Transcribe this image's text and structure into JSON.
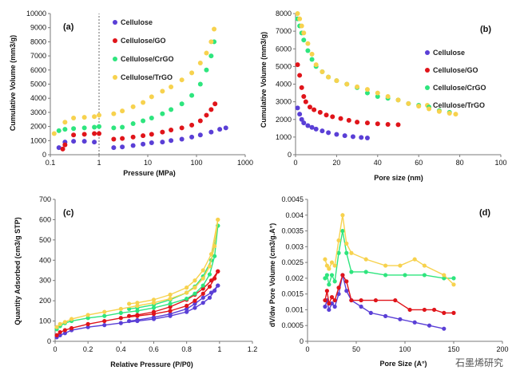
{
  "colors": {
    "Cellulose": "#5a3fd6",
    "Cellulose/GO": "#e0141a",
    "Cellulose/CrGO": "#2ee57e",
    "Cellulose/TrGO": "#f7d24e"
  },
  "watermark": "石墨烯研究",
  "chart_data": [
    {
      "id": "a",
      "panel_label": "(a)",
      "type": "scatter",
      "xscale": "log",
      "xlabel": "Pressure (MPa)",
      "ylabel": "Cumulative Volume (mm3/g)",
      "xlim": [
        0.1,
        1000
      ],
      "ylim": [
        0,
        10000
      ],
      "xticks": [
        0.1,
        1,
        10,
        100,
        1000
      ],
      "xtick_labels": [
        "0.1",
        "1",
        "10",
        "100",
        "1000"
      ],
      "yticks": [
        0,
        1000,
        2000,
        3000,
        4000,
        5000,
        6000,
        7000,
        8000,
        9000,
        10000
      ],
      "ytick_labels": [
        "0",
        "1000",
        "2000",
        "3000",
        "4000",
        "5000",
        "6000",
        "7000",
        "8000",
        "9000",
        "10000"
      ],
      "vline_x": 1,
      "legend": "top-left",
      "series": [
        {
          "name": "Cellulose",
          "x": [
            0.15,
            0.2,
            0.3,
            0.5,
            0.8,
            2,
            3,
            5,
            8,
            12,
            20,
            30,
            50,
            80,
            120,
            200,
            300,
            400
          ],
          "y": [
            500,
            900,
            950,
            950,
            900,
            500,
            550,
            650,
            750,
            850,
            900,
            1000,
            1100,
            1250,
            1400,
            1600,
            1800,
            1900
          ]
        },
        {
          "name": "Cellulose/GO",
          "x": [
            0.18,
            0.2,
            0.3,
            0.5,
            0.8,
            1,
            2,
            3,
            5,
            8,
            12,
            20,
            30,
            50,
            80,
            120,
            160,
            200,
            240
          ],
          "y": [
            400,
            700,
            1400,
            1450,
            1500,
            1500,
            1100,
            1150,
            1250,
            1350,
            1450,
            1600,
            1750,
            1900,
            2100,
            2400,
            2800,
            3200,
            3600
          ]
        },
        {
          "name": "Cellulose/CrGO",
          "x": [
            0.15,
            0.2,
            0.3,
            0.5,
            0.8,
            1,
            2,
            3,
            5,
            8,
            12,
            20,
            30,
            50,
            80,
            120,
            160,
            200,
            230
          ],
          "y": [
            1700,
            1800,
            1850,
            1900,
            1950,
            2000,
            1900,
            1950,
            2200,
            2400,
            2600,
            2900,
            3200,
            3600,
            4200,
            5000,
            6000,
            7000,
            8000
          ]
        },
        {
          "name": "Cellulose/TrGO",
          "x": [
            0.12,
            0.2,
            0.3,
            0.5,
            0.8,
            1,
            2,
            3,
            5,
            8,
            12,
            20,
            30,
            50,
            80,
            120,
            160,
            200,
            230
          ],
          "y": [
            1500,
            2300,
            2600,
            2650,
            2700,
            2800,
            2900,
            3100,
            3400,
            3700,
            4100,
            4500,
            4800,
            5300,
            5800,
            6500,
            7200,
            8000,
            8900
          ]
        }
      ]
    },
    {
      "id": "b",
      "panel_label": "(b)",
      "type": "scatter",
      "xlabel": "Pore size (nm)",
      "ylabel": "Cumulative Volume (mm3/g)",
      "xlim": [
        0,
        100
      ],
      "ylim": [
        0,
        8000
      ],
      "xticks": [
        0,
        20,
        40,
        60,
        80,
        100
      ],
      "xtick_labels": [
        "0",
        "20",
        "40",
        "60",
        "80",
        "100"
      ],
      "yticks": [
        0,
        1000,
        2000,
        3000,
        4000,
        5000,
        6000,
        7000,
        8000
      ],
      "ytick_labels": [
        "0",
        "1000",
        "2000",
        "3000",
        "4000",
        "5000",
        "6000",
        "7000",
        "8000"
      ],
      "legend": "right",
      "series": [
        {
          "name": "Cellulose",
          "x": [
            1,
            2,
            3,
            4,
            6,
            8,
            10,
            13,
            16,
            20,
            24,
            28,
            32,
            35
          ],
          "y": [
            2650,
            2300,
            2000,
            1800,
            1650,
            1550,
            1450,
            1350,
            1250,
            1150,
            1080,
            1020,
            980,
            950
          ]
        },
        {
          "name": "Cellulose/GO",
          "x": [
            1,
            2,
            3,
            4,
            5,
            7,
            9,
            12,
            15,
            18,
            22,
            26,
            30,
            35,
            40,
            45,
            50
          ],
          "y": [
            5100,
            4500,
            3800,
            3300,
            3000,
            2700,
            2550,
            2400,
            2250,
            2150,
            2050,
            1950,
            1850,
            1800,
            1750,
            1720,
            1700
          ]
        },
        {
          "name": "Cellulose/CrGO",
          "x": [
            1,
            2,
            3,
            4,
            6,
            8,
            10,
            13,
            16,
            20,
            25,
            30,
            35,
            40,
            45,
            50,
            55,
            60,
            65,
            70,
            75
          ],
          "y": [
            7700,
            7300,
            6900,
            6500,
            5900,
            5400,
            5000,
            4700,
            4400,
            4200,
            4000,
            3800,
            3500,
            3300,
            3200,
            3100,
            2900,
            2800,
            2700,
            2500,
            2400
          ]
        },
        {
          "name": "Cellulose/TrGO",
          "x": [
            1,
            2,
            3,
            4,
            6,
            8,
            10,
            13,
            16,
            20,
            25,
            30,
            35,
            40,
            45,
            50,
            55,
            60,
            65,
            70,
            75,
            78
          ],
          "y": [
            8000,
            7700,
            7300,
            6900,
            6300,
            5700,
            5100,
            4700,
            4400,
            4200,
            4000,
            3850,
            3700,
            3500,
            3300,
            3100,
            2900,
            2750,
            2600,
            2450,
            2350,
            2300
          ]
        }
      ]
    },
    {
      "id": "c",
      "panel_label": "(c)",
      "type": "line",
      "xlabel": "Relative Pressure (P/P0)",
      "ylabel": "Quantity Adsorbed (cm3/g STP)",
      "xlim": [
        0,
        1.2
      ],
      "ylim": [
        0,
        700
      ],
      "xticks": [
        0,
        0.2,
        0.4,
        0.6,
        0.8,
        1.0,
        1.2
      ],
      "xtick_labels": [
        "0",
        "0.2",
        "0.4",
        "0.6",
        "0.8",
        "1",
        "1.2"
      ],
      "yticks": [
        0,
        100,
        200,
        300,
        400,
        500,
        600,
        700
      ],
      "ytick_labels": [
        "0",
        "100",
        "200",
        "300",
        "400",
        "500",
        "600",
        "700"
      ],
      "series": [
        {
          "name": "Cellulose",
          "ads": {
            "x": [
              0.01,
              0.03,
              0.06,
              0.1,
              0.2,
              0.3,
              0.4,
              0.5,
              0.6,
              0.7,
              0.8,
              0.85,
              0.9,
              0.94,
              0.97,
              0.99
            ],
            "y": [
              20,
              30,
              40,
              55,
              70,
              80,
              90,
              100,
              110,
              125,
              145,
              165,
              190,
              215,
              250,
              275
            ]
          },
          "des": {
            "x": [
              0.99,
              0.95,
              0.9,
              0.85,
              0.8,
              0.7,
              0.6,
              0.5,
              0.45
            ],
            "y": [
              275,
              240,
              215,
              185,
              160,
              135,
              118,
              105,
              100
            ]
          }
        },
        {
          "name": "Cellulose/GO",
          "ads": {
            "x": [
              0.01,
              0.03,
              0.06,
              0.1,
              0.2,
              0.3,
              0.4,
              0.5,
              0.6,
              0.7,
              0.8,
              0.85,
              0.9,
              0.94,
              0.97,
              0.99
            ],
            "y": [
              30,
              45,
              55,
              65,
              85,
              100,
              115,
              125,
              135,
              150,
              175,
              200,
              235,
              270,
              310,
              345
            ]
          },
          "des": {
            "x": [
              0.99,
              0.95,
              0.9,
              0.85,
              0.8,
              0.7,
              0.6,
              0.5,
              0.45
            ],
            "y": [
              345,
              300,
              260,
              230,
              205,
              170,
              145,
              130,
              125
            ]
          }
        },
        {
          "name": "Cellulose/CrGO",
          "ads": {
            "x": [
              0.01,
              0.03,
              0.06,
              0.1,
              0.2,
              0.3,
              0.4,
              0.5,
              0.6,
              0.7,
              0.8,
              0.85,
              0.9,
              0.94,
              0.97,
              0.99
            ],
            "y": [
              60,
              75,
              90,
              100,
              115,
              125,
              140,
              150,
              165,
              185,
              210,
              235,
              275,
              330,
              420,
              570
            ]
          },
          "des": {
            "x": [
              0.99,
              0.95,
              0.9,
              0.85,
              0.8,
              0.7,
              0.6,
              0.5,
              0.45
            ],
            "y": [
              570,
              400,
              320,
              270,
              240,
              205,
              180,
              165,
              160
            ]
          }
        },
        {
          "name": "Cellulose/TrGO",
          "ads": {
            "x": [
              0.01,
              0.03,
              0.06,
              0.1,
              0.2,
              0.3,
              0.4,
              0.5,
              0.6,
              0.7,
              0.8,
              0.85,
              0.9,
              0.94,
              0.97,
              0.99
            ],
            "y": [
              70,
              85,
              95,
              110,
              130,
              145,
              160,
              175,
              190,
              210,
              240,
              265,
              310,
              370,
              470,
              600
            ]
          },
          "des": {
            "x": [
              0.99,
              0.95,
              0.9,
              0.85,
              0.8,
              0.7,
              0.6,
              0.5,
              0.45
            ],
            "y": [
              600,
              430,
              350,
              300,
              265,
              230,
              205,
              190,
              185
            ]
          }
        }
      ]
    },
    {
      "id": "d",
      "panel_label": "(d)",
      "type": "line",
      "xlabel": "Pore Size (A°)",
      "ylabel": "dV/dw Pore Volume (cm3/g.A°)",
      "xlim": [
        0,
        200
      ],
      "ylim": [
        0,
        0.0045
      ],
      "xticks": [
        0,
        50,
        100,
        150,
        200
      ],
      "xtick_labels": [
        "0",
        "50",
        "100",
        "150",
        "200"
      ],
      "yticks": [
        0,
        0.0005,
        0.001,
        0.0015,
        0.002,
        0.0025,
        0.003,
        0.0035,
        0.004,
        0.0045
      ],
      "ytick_labels": [
        "0",
        "0.0005",
        "0.001",
        "0.0015",
        "0.002",
        "0.0025",
        "0.003",
        "0.0035",
        "0.004",
        "0.0045"
      ],
      "series": [
        {
          "name": "Cellulose",
          "x": [
            18,
            20,
            22,
            25,
            28,
            32,
            36,
            40,
            45,
            55,
            65,
            80,
            95,
            110,
            125,
            140
          ],
          "y": [
            0.0011,
            0.0013,
            0.001,
            0.0012,
            0.0011,
            0.0015,
            0.0021,
            0.0016,
            0.0013,
            0.0011,
            0.0009,
            0.0008,
            0.0007,
            0.0006,
            0.0005,
            0.0004
          ]
        },
        {
          "name": "Cellulose/GO",
          "x": [
            18,
            20,
            22,
            25,
            28,
            32,
            36,
            40,
            45,
            55,
            70,
            90,
            105,
            120,
            130,
            140,
            150
          ],
          "y": [
            0.0013,
            0.0016,
            0.0012,
            0.0014,
            0.0013,
            0.0017,
            0.0021,
            0.0019,
            0.0013,
            0.0013,
            0.0013,
            0.0013,
            0.001,
            0.001,
            0.001,
            0.0009,
            0.0009
          ]
        },
        {
          "name": "Cellulose/CrGO",
          "x": [
            18,
            20,
            22,
            25,
            28,
            32,
            36,
            40,
            45,
            60,
            80,
            100,
            120,
            140,
            150
          ],
          "y": [
            0.002,
            0.0021,
            0.0018,
            0.0021,
            0.0019,
            0.0028,
            0.0035,
            0.0028,
            0.0022,
            0.0022,
            0.0021,
            0.0021,
            0.0021,
            0.002,
            0.002
          ]
        },
        {
          "name": "Cellulose/TrGO",
          "x": [
            18,
            20,
            22,
            25,
            28,
            32,
            36,
            40,
            45,
            60,
            80,
            95,
            110,
            120,
            140,
            150
          ],
          "y": [
            0.0026,
            0.0024,
            0.0023,
            0.0025,
            0.0024,
            0.0032,
            0.004,
            0.0031,
            0.0028,
            0.0026,
            0.0024,
            0.0024,
            0.0026,
            0.0024,
            0.0021,
            0.0018
          ]
        }
      ]
    }
  ]
}
